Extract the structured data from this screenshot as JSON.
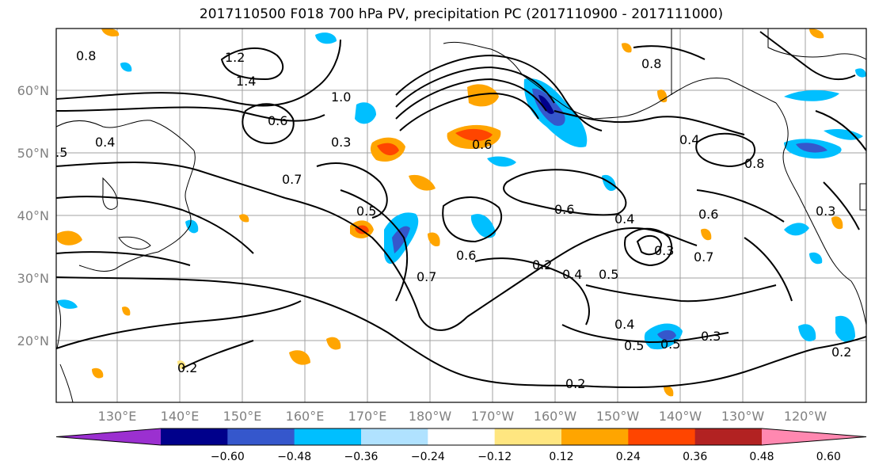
{
  "title": "2017110500 F018 700 hPa PV, precipitation PC (2017110900 - 2017111000)",
  "lat_ticks": [
    "60°N",
    "50°N",
    "40°N",
    "30°N",
    "20°N"
  ],
  "lon_ticks": [
    "130°E",
    "140°E",
    "150°E",
    "160°E",
    "170°E",
    "180°W",
    "170°W",
    "160°W",
    "150°W",
    "140°W",
    "130°W",
    "120°W"
  ],
  "colorbar": {
    "labels": [
      "−0.60",
      "−0.48",
      "−0.36",
      "−0.24",
      "−0.12",
      "0.12",
      "0.24",
      "0.36",
      "0.48",
      "0.60"
    ],
    "colors": [
      "#9b30d0",
      "#00008b",
      "#3557cc",
      "#00bfff",
      "#b0e2ff",
      "#ffffff",
      "#ffe680",
      "#ffa500",
      "#ff4500",
      "#b22222",
      "#ff88b0"
    ]
  },
  "contour_labels": [
    {
      "text": "0.8"
    },
    {
      "text": "1.2"
    },
    {
      "text": "1.4"
    },
    {
      "text": "0.5"
    },
    {
      "text": "0.4"
    },
    {
      "text": "0.7"
    },
    {
      "text": "0.6"
    },
    {
      "text": "1.0"
    },
    {
      "text": "0.3"
    },
    {
      "text": "0.5"
    },
    {
      "text": "0.7"
    },
    {
      "text": "0.6"
    },
    {
      "text": "0.2"
    },
    {
      "text": "0.4"
    },
    {
      "text": "0.6"
    },
    {
      "text": "0.4"
    },
    {
      "text": "0.5"
    },
    {
      "text": "0.3"
    },
    {
      "text": "0.7"
    },
    {
      "text": "0.6"
    },
    {
      "text": "0.4"
    },
    {
      "text": "0.5"
    },
    {
      "text": "0.5"
    },
    {
      "text": "0.3"
    },
    {
      "text": "0.2"
    },
    {
      "text": "0.2"
    },
    {
      "text": "0.8"
    },
    {
      "text": "0.4"
    },
    {
      "text": "0.3"
    },
    {
      "text": "0.2"
    },
    {
      "text": "0.6"
    },
    {
      "text": "0.8"
    }
  ]
}
